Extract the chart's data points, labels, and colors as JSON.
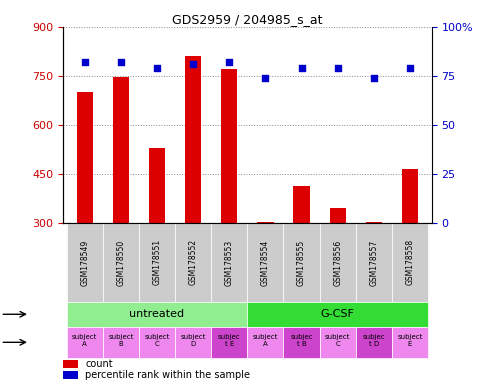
{
  "title": "GDS2959 / 204985_s_at",
  "samples": [
    "GSM178549",
    "GSM178550",
    "GSM178551",
    "GSM178552",
    "GSM178553",
    "GSM178554",
    "GSM178555",
    "GSM178556",
    "GSM178557",
    "GSM178558"
  ],
  "counts": [
    700,
    748,
    530,
    810,
    770,
    303,
    415,
    345,
    303,
    465
  ],
  "percentile_ranks": [
    82,
    82,
    79,
    81,
    82,
    74,
    79,
    79,
    74,
    79
  ],
  "ymin": 300,
  "ymax": 900,
  "yticks": [
    300,
    450,
    600,
    750,
    900
  ],
  "y2min": 0,
  "y2max": 100,
  "y2ticks": [
    0,
    25,
    50,
    75,
    100
  ],
  "bar_color": "#dd0000",
  "dot_color": "#0000cc",
  "agent_color_untreated": "#90ee90",
  "agent_color_gcsf": "#33dd33",
  "individual_labels": [
    "subject\nA",
    "subject\nB",
    "subject\nC",
    "subject\nD",
    "subjec\nt E",
    "subject\nA",
    "subjec\nt B",
    "subject\nC",
    "subjec\nt D",
    "subject\nE"
  ],
  "individual_highlight": [
    4,
    6,
    8
  ],
  "individual_color_normal": "#ee88ee",
  "individual_color_highlight": "#cc44cc",
  "bar_width": 0.45,
  "grid_color": "#888888",
  "left_tick_color": "#cc0000",
  "right_tick_color": "#0000cc",
  "xticklabel_bg": "#cccccc"
}
